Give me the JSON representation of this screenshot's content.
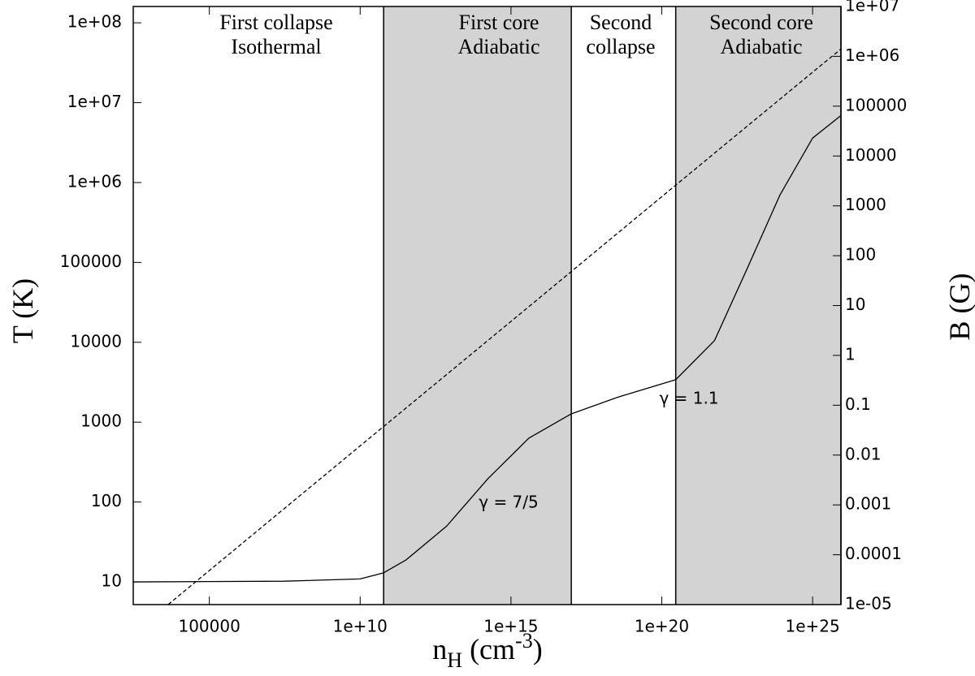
{
  "chart_data": {
    "type": "line",
    "xscale": "log",
    "yscale": "log",
    "y2scale": "log",
    "x_label": {
      "base": "n",
      "sub": "H",
      "mid": " (cm",
      "sup": "-3",
      "end": ")"
    },
    "y_label": "T (K)",
    "y2_label": "B (G)",
    "xlim": [
      300,
      8.7e+25
    ],
    "ylim": [
      5.2,
      160000000.0
    ],
    "y2lim": [
      1e-05,
      10000000.0
    ],
    "xticks": [
      100000,
      {
        "value": 10000000000.0,
        "label": "1e+10"
      },
      {
        "value": 1000000000000000.0,
        "label": "1e+15"
      },
      {
        "value": 1e+20,
        "label": "1e+20"
      },
      {
        "value": 1e+25,
        "label": "1e+25"
      }
    ],
    "yticks": [
      10,
      100,
      1000,
      10000,
      100000,
      {
        "value": 1000000.0,
        "label": "1e+06"
      },
      {
        "value": 10000000.0,
        "label": "1e+07"
      },
      {
        "value": 100000000.0,
        "label": "1e+08"
      }
    ],
    "y2ticks": [
      {
        "value": 1e-05,
        "label": "1e-05"
      },
      0.0001,
      0.001,
      0.01,
      0.1,
      1,
      10,
      100,
      1000,
      10000,
      100000,
      {
        "value": 1000000.0,
        "label": "1e+06"
      },
      {
        "value": 10000000.0,
        "label": "1e+07"
      }
    ],
    "shaded_regions": [
      [
        60000000000.0,
        1e+17
      ],
      [
        2.9e+20,
        8.7e+25
      ]
    ],
    "region_color": "#d3d3d3",
    "region_labels": [
      [
        "First collapse",
        "Isothermal"
      ],
      [
        "First core",
        "Adiabatic"
      ],
      [
        "Second",
        "collapse"
      ],
      [
        "Second core",
        "Adiabatic"
      ]
    ],
    "annotations": [
      "γ = 7/5",
      "γ = 1.1"
    ],
    "series": [
      {
        "color": "#000000",
        "dash": false,
        "x": [
          300,
          30000000.0,
          10000000000.0,
          60000000000.0,
          330000000000.0,
          7400000000000.0,
          170000000000000.0,
          3900000000000000.0,
          1e+17,
          3.3e+18,
          2.9e+20,
          5.6e+21,
          6.9e+22,
          8.3e+23,
          1e+25,
          8.7e+25
        ],
        "values": [
          10,
          10.2,
          10.9,
          13,
          18.8,
          50,
          195,
          630,
          1270,
          2040,
          3400,
          10500,
          85000,
          700000,
          3600000,
          6900000
        ]
      },
      {
        "color": "#000000",
        "dash": true,
        "axis": "y2",
        "x": [
          4300,
          10000000000.0,
          1000000000000000.0,
          1e+20,
          1e+25,
          8.7e+25
        ],
        "values": [
          1e-05,
          0.0153,
          4.8,
          1530,
          480000,
          1400000
        ]
      }
    ]
  }
}
